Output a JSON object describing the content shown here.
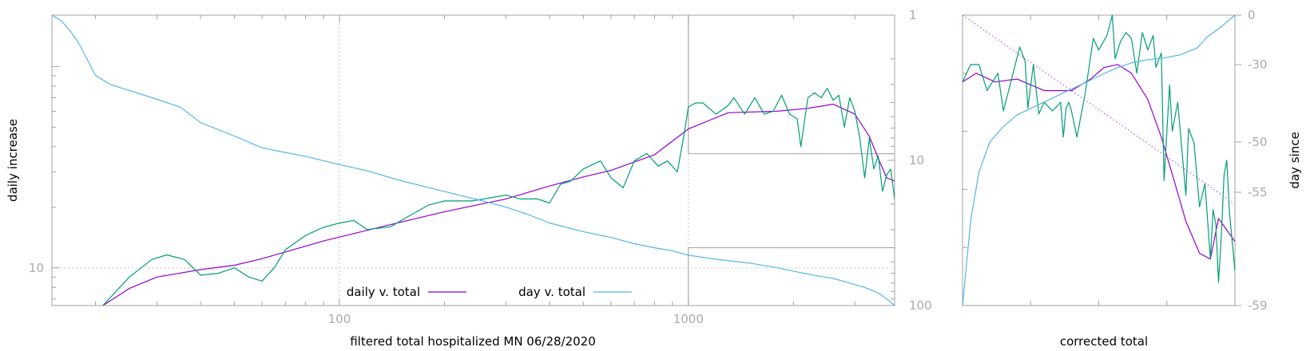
{
  "colors": {
    "frame": "#a0a0a0",
    "grid": "#c8c8c8",
    "tick_text": "#aaaaaa",
    "daily_fit": "#9400d3",
    "raw_daily": "#009e73",
    "day_curve": "#56b4e9",
    "dotted_line": "#c050e8"
  },
  "chart_data": [
    {
      "type": "line",
      "xlabel": "filtered total hospitalized MN 06/28/2020",
      "ylabel": "daily increase",
      "y2label": "",
      "xscale": "log",
      "yscale": "log",
      "xlim": [
        15,
        3900
      ],
      "ylim": [
        6.5,
        180
      ],
      "y2scale": "log",
      "y2lim": [
        1,
        100
      ],
      "y2_reversed": true,
      "x_tick_labels": [
        "100",
        "1000"
      ],
      "y_tick_labels": [
        "10"
      ],
      "y2_tick_labels": [
        "1",
        "10",
        "100"
      ],
      "grid": true,
      "legend_position": "bottom-center",
      "series": [
        {
          "name": "daily v. total",
          "color": "#9400d3",
          "axis": "y",
          "x": [
            21,
            25,
            30,
            40,
            50,
            60,
            70,
            90,
            110,
            140,
            200,
            300,
            400,
            500,
            600,
            800,
            1000,
            1300,
            1800,
            2200,
            2600,
            3000,
            3300,
            3500,
            3700,
            3900
          ],
          "y": [
            6.5,
            7.9,
            9.0,
            9.8,
            10.3,
            11.1,
            12.0,
            13.6,
            14.8,
            16.4,
            19.0,
            22.0,
            25.5,
            28.3,
            30.5,
            36.5,
            49,
            59,
            60,
            62,
            65,
            58,
            45,
            35,
            28,
            27
          ]
        },
        {
          "name": "",
          "color": "#009e73",
          "axis": "y",
          "x": [
            21,
            25,
            29,
            32,
            36,
            40,
            45,
            50,
            55,
            60,
            65,
            70,
            80,
            90,
            100,
            110,
            120,
            140,
            160,
            180,
            200,
            240,
            280,
            300,
            330,
            370,
            400,
            430,
            460,
            500,
            520,
            560,
            600,
            650,
            700,
            760,
            820,
            870,
            930,
            970,
            1000,
            1050,
            1100,
            1200,
            1300,
            1350,
            1450,
            1550,
            1650,
            1750,
            1850,
            1950,
            2050,
            2100,
            2200,
            2300,
            2400,
            2500,
            2600,
            2700,
            2800,
            2900,
            3000,
            3100,
            3200,
            3300,
            3400,
            3500,
            3600,
            3700,
            3800,
            3900
          ],
          "y": [
            6.5,
            9.0,
            11.0,
            11.6,
            11.0,
            9.2,
            9.4,
            10.0,
            9.0,
            8.6,
            10.0,
            12.3,
            14.5,
            15.9,
            16.7,
            17.2,
            15.5,
            16.0,
            18.3,
            20.5,
            21.5,
            21.5,
            22.5,
            23.0,
            22.0,
            22.0,
            21.0,
            26.0,
            27.0,
            31.0,
            32.0,
            34.0,
            28.0,
            25.0,
            34.0,
            37.0,
            32.0,
            34.0,
            30.0,
            45.0,
            63.0,
            66.0,
            66.0,
            58.0,
            64.0,
            70.0,
            58.0,
            70.0,
            58.0,
            60.0,
            72.0,
            58.0,
            55.0,
            40.0,
            70.0,
            74.0,
            70.0,
            78.0,
            68.0,
            72.0,
            50.0,
            70.0,
            60.0,
            44.0,
            28.0,
            44.0,
            31.0,
            36.0,
            24.0,
            29.0,
            31.0,
            22.0
          ]
        },
        {
          "name": "day v. total",
          "color": "#56b4e9",
          "axis": "y2",
          "x": [
            15,
            16,
            17,
            18,
            20,
            22,
            25,
            30,
            35,
            40,
            50,
            60,
            80,
            100,
            120,
            150,
            200,
            250,
            300,
            350,
            400,
            500,
            600,
            700,
            800,
            900,
            1000,
            1200,
            1500,
            1800,
            2000,
            2300,
            2600,
            2900,
            3200,
            3500,
            3700,
            3900
          ],
          "y": [
            1.0,
            1.1,
            1.3,
            1.6,
            2.6,
            3.0,
            3.3,
            3.8,
            4.3,
            5.5,
            6.8,
            8.2,
            9.4,
            10.7,
            11.8,
            13.8,
            16.4,
            18.7,
            21.0,
            23.8,
            27.0,
            31.0,
            34.0,
            37.5,
            40.0,
            42.0,
            45.0,
            48.0,
            51.0,
            55.0,
            58.0,
            62.0,
            65.0,
            70.0,
            75.0,
            82.0,
            90.0,
            100.0
          ]
        }
      ],
      "inset_boxes": [
        {
          "x0": 1000,
          "x1": 3900,
          "y2_0": 1,
          "y2_1": 9
        },
        {
          "x0": 1000,
          "x1": 3900,
          "y2_0": 40,
          "y2_1": 100
        }
      ]
    },
    {
      "type": "line",
      "xlabel": "corrected total",
      "ylabel": "",
      "y2label": "day since",
      "y2_tick_labels": [
        "0",
        "-30",
        "-50",
        "-55",
        "-59"
      ],
      "y2_tick_values": [
        0,
        -30,
        -50,
        -55,
        -59
      ],
      "grid": false,
      "series": [
        {
          "name": "",
          "color": "#9400d3",
          "axis": "y",
          "x": [
            0,
            5,
            12,
            20,
            30,
            40,
            47,
            52,
            57,
            62,
            68,
            73,
            78,
            82,
            87,
            91,
            94,
            97,
            100
          ],
          "y": [
            0.77,
            0.8,
            0.77,
            0.78,
            0.74,
            0.74,
            0.78,
            0.82,
            0.83,
            0.8,
            0.71,
            0.58,
            0.42,
            0.29,
            0.18,
            0.16,
            0.3,
            0.26,
            0.22
          ]
        },
        {
          "name": "",
          "color": "#009e73",
          "axis": "y",
          "x": [
            0,
            3,
            6,
            9,
            13,
            15,
            18,
            21,
            23,
            24,
            26,
            28,
            30,
            33,
            36,
            37,
            38,
            39,
            40,
            42,
            45,
            48,
            50,
            53,
            55,
            56,
            58,
            60,
            62,
            64,
            66,
            68,
            70,
            71,
            73,
            74,
            76,
            77,
            79,
            82,
            83,
            85,
            87,
            89,
            91,
            92,
            93,
            94,
            95,
            96,
            97,
            98,
            99,
            100
          ],
          "y": [
            0.77,
            0.83,
            0.83,
            0.74,
            0.8,
            0.67,
            0.78,
            0.89,
            0.84,
            0.68,
            0.83,
            0.66,
            0.7,
            0.67,
            0.7,
            0.58,
            0.68,
            0.7,
            0.67,
            0.58,
            0.73,
            0.92,
            0.88,
            0.93,
            1.0,
            0.85,
            0.91,
            0.94,
            0.92,
            0.8,
            0.94,
            0.88,
            0.93,
            0.82,
            0.87,
            0.43,
            0.76,
            0.6,
            0.7,
            0.38,
            0.61,
            0.56,
            0.34,
            0.42,
            0.16,
            0.33,
            0.28,
            0.08,
            0.24,
            0.45,
            0.5,
            0.32,
            0.22,
            0.12
          ]
        },
        {
          "name": "",
          "color": "#56b4e9",
          "axis": "y2",
          "x": [
            0,
            3,
            6,
            10,
            15,
            20,
            26,
            32,
            38,
            44,
            50,
            56,
            62,
            68,
            74,
            80,
            86,
            90,
            95,
            100
          ],
          "y": [
            -59,
            -56,
            -53,
            -50,
            -46,
            -43,
            -41,
            -39,
            -37,
            -35,
            -33,
            -31,
            -29,
            -27,
            -26,
            -24,
            -20,
            -13,
            -7,
            0
          ]
        },
        {
          "name": "",
          "color": "#c050e8",
          "axis": "y",
          "dotted": true,
          "x": [
            0,
            100
          ],
          "y": [
            1.0,
            0.35
          ]
        }
      ]
    }
  ],
  "legend": [
    {
      "label": "daily v. total",
      "color": "#9400d3"
    },
    {
      "label": "day v. total",
      "color": "#56b4e9"
    }
  ]
}
